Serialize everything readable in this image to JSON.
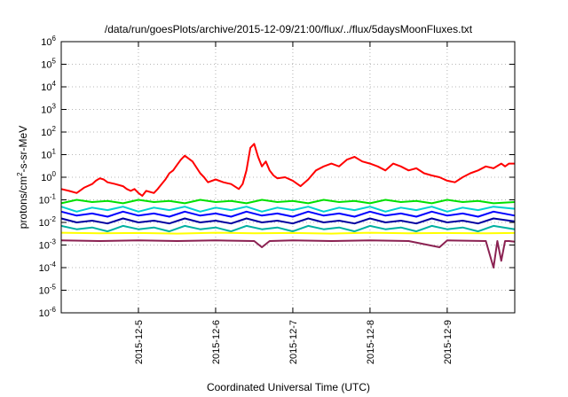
{
  "chart_data": {
    "type": "line",
    "title": "/data/run/goesPlots/archive/2015-12-09/21:00/flux/../flux/5daysMoonFluxes.txt",
    "xlabel": "Coordinated Universal Time (UTC)",
    "ylabel_parts": [
      "protons/cm",
      "2",
      "-s-sr-MeV"
    ],
    "yscale": "log",
    "ylim": [
      1e-06,
      1000000.0
    ],
    "xlim": [
      "2015-12-04 00:00",
      "2015-12-09 21:00"
    ],
    "grid": true,
    "legend": "none",
    "y_ticks": [
      {
        "value": 1e-06,
        "base": "10",
        "exp": "-6"
      },
      {
        "value": 1e-05,
        "base": "10",
        "exp": "-5"
      },
      {
        "value": 0.0001,
        "base": "10",
        "exp": "-4"
      },
      {
        "value": 0.001,
        "base": "10",
        "exp": "-3"
      },
      {
        "value": 0.01,
        "base": "10",
        "exp": "-2"
      },
      {
        "value": 0.1,
        "base": "10",
        "exp": "-1"
      },
      {
        "value": 1.0,
        "base": "10",
        "exp": "0"
      },
      {
        "value": 10.0,
        "base": "10",
        "exp": "1"
      },
      {
        "value": 100.0,
        "base": "10",
        "exp": "2"
      },
      {
        "value": 1000.0,
        "base": "10",
        "exp": "3"
      },
      {
        "value": 10000.0,
        "base": "10",
        "exp": "4"
      },
      {
        "value": 100000.0,
        "base": "10",
        "exp": "5"
      },
      {
        "value": 1000000.0,
        "base": "10",
        "exp": "6"
      }
    ],
    "x_ticks": [
      "2015-12-5",
      "2015-12-6",
      "2015-12-7",
      "2015-12-8",
      "2015-12-9"
    ],
    "x_tick_days": [
      1,
      2,
      3,
      4,
      5
    ],
    "x_end_days": 5.875,
    "series": [
      {
        "color": "#ff0000",
        "x": [
          0.0,
          0.1,
          0.2,
          0.3,
          0.4,
          0.45,
          0.5,
          0.55,
          0.6,
          0.7,
          0.8,
          0.85,
          0.9,
          0.95,
          1.0,
          1.05,
          1.1,
          1.2,
          1.25,
          1.3,
          1.35,
          1.4,
          1.45,
          1.5,
          1.55,
          1.6,
          1.7,
          1.8,
          1.85,
          1.9,
          2.0,
          2.1,
          2.2,
          2.3,
          2.35,
          2.4,
          2.45,
          2.5,
          2.55,
          2.6,
          2.65,
          2.7,
          2.75,
          2.8,
          2.9,
          3.0,
          3.1,
          3.2,
          3.3,
          3.4,
          3.5,
          3.6,
          3.7,
          3.8,
          3.9,
          4.0,
          4.1,
          4.2,
          4.3,
          4.4,
          4.5,
          4.6,
          4.7,
          4.8,
          4.9,
          5.0,
          5.1,
          5.2,
          5.3,
          5.4,
          5.5,
          5.6,
          5.7,
          5.75,
          5.8,
          5.875
        ],
        "y": [
          0.3,
          0.25,
          0.2,
          0.35,
          0.5,
          0.7,
          0.9,
          0.8,
          0.6,
          0.5,
          0.4,
          0.3,
          0.25,
          0.3,
          0.2,
          0.15,
          0.25,
          0.2,
          0.3,
          0.5,
          0.8,
          1.5,
          2.0,
          3.5,
          6.0,
          9.0,
          5.0,
          1.5,
          1.0,
          0.6,
          0.8,
          0.6,
          0.5,
          0.3,
          0.5,
          2.0,
          20.0,
          30.0,
          8.0,
          3.0,
          5.0,
          2.0,
          1.2,
          0.9,
          1.0,
          0.7,
          0.4,
          0.8,
          2.0,
          3.0,
          4.0,
          3.0,
          6.0,
          8.0,
          5.0,
          4.0,
          3.0,
          2.0,
          4.0,
          3.0,
          2.0,
          2.5,
          1.5,
          1.2,
          1.0,
          0.7,
          0.6,
          1.0,
          1.5,
          2.0,
          3.0,
          2.5,
          4.0,
          3.0,
          4.0,
          4.0
        ]
      },
      {
        "color": "#00e000",
        "x": [
          0.0,
          0.2,
          0.4,
          0.6,
          0.8,
          1.0,
          1.2,
          1.4,
          1.6,
          1.8,
          2.0,
          2.2,
          2.4,
          2.6,
          2.8,
          3.0,
          3.2,
          3.4,
          3.6,
          3.8,
          4.0,
          4.2,
          4.4,
          4.6,
          4.8,
          5.0,
          5.2,
          5.4,
          5.6,
          5.875
        ],
        "y": [
          0.07,
          0.1,
          0.08,
          0.09,
          0.07,
          0.1,
          0.08,
          0.09,
          0.07,
          0.1,
          0.08,
          0.09,
          0.07,
          0.1,
          0.08,
          0.09,
          0.07,
          0.1,
          0.08,
          0.09,
          0.07,
          0.1,
          0.08,
          0.09,
          0.07,
          0.1,
          0.08,
          0.09,
          0.07,
          0.08
        ]
      },
      {
        "color": "#00d0d0",
        "x": [
          0.0,
          0.2,
          0.4,
          0.6,
          0.8,
          1.0,
          1.2,
          1.4,
          1.6,
          1.8,
          2.0,
          2.2,
          2.4,
          2.6,
          2.8,
          3.0,
          3.2,
          3.4,
          3.6,
          3.8,
          4.0,
          4.2,
          4.4,
          4.6,
          4.8,
          5.0,
          5.2,
          5.4,
          5.6,
          5.875
        ],
        "y": [
          0.05,
          0.03,
          0.045,
          0.035,
          0.05,
          0.03,
          0.045,
          0.035,
          0.05,
          0.03,
          0.045,
          0.035,
          0.05,
          0.03,
          0.045,
          0.035,
          0.05,
          0.03,
          0.045,
          0.035,
          0.05,
          0.03,
          0.045,
          0.035,
          0.05,
          0.03,
          0.045,
          0.035,
          0.05,
          0.04
        ]
      },
      {
        "color": "#0000ff",
        "x": [
          0.0,
          0.2,
          0.4,
          0.6,
          0.8,
          1.0,
          1.2,
          1.4,
          1.6,
          1.8,
          2.0,
          2.2,
          2.4,
          2.6,
          2.8,
          3.0,
          3.2,
          3.4,
          3.6,
          3.8,
          4.0,
          4.2,
          4.4,
          4.6,
          4.8,
          5.0,
          5.2,
          5.4,
          5.6,
          5.875
        ],
        "y": [
          0.03,
          0.02,
          0.025,
          0.018,
          0.03,
          0.02,
          0.025,
          0.018,
          0.03,
          0.02,
          0.025,
          0.018,
          0.03,
          0.02,
          0.025,
          0.018,
          0.03,
          0.02,
          0.025,
          0.018,
          0.03,
          0.02,
          0.025,
          0.018,
          0.03,
          0.02,
          0.025,
          0.018,
          0.03,
          0.02
        ]
      },
      {
        "color": "#0000a0",
        "x": [
          0.0,
          0.2,
          0.4,
          0.6,
          0.8,
          1.0,
          1.2,
          1.4,
          1.6,
          1.8,
          2.0,
          2.2,
          2.4,
          2.6,
          2.8,
          3.0,
          3.2,
          3.4,
          3.6,
          3.8,
          4.0,
          4.2,
          4.4,
          4.6,
          4.8,
          5.0,
          5.2,
          5.4,
          5.6,
          5.875
        ],
        "y": [
          0.015,
          0.01,
          0.012,
          0.009,
          0.015,
          0.01,
          0.012,
          0.009,
          0.015,
          0.01,
          0.012,
          0.009,
          0.015,
          0.01,
          0.012,
          0.009,
          0.015,
          0.01,
          0.012,
          0.009,
          0.015,
          0.01,
          0.012,
          0.009,
          0.015,
          0.01,
          0.012,
          0.009,
          0.015,
          0.011
        ]
      },
      {
        "color": "#00b0a0",
        "x": [
          0.0,
          0.2,
          0.4,
          0.6,
          0.8,
          1.0,
          1.2,
          1.4,
          1.6,
          1.8,
          2.0,
          2.2,
          2.4,
          2.6,
          2.8,
          3.0,
          3.2,
          3.4,
          3.6,
          3.8,
          4.0,
          4.2,
          4.4,
          4.6,
          4.8,
          5.0,
          5.2,
          5.4,
          5.6,
          5.875
        ],
        "y": [
          0.007,
          0.005,
          0.006,
          0.004,
          0.007,
          0.005,
          0.006,
          0.004,
          0.007,
          0.005,
          0.006,
          0.004,
          0.007,
          0.005,
          0.006,
          0.004,
          0.007,
          0.005,
          0.006,
          0.004,
          0.007,
          0.005,
          0.006,
          0.004,
          0.007,
          0.005,
          0.006,
          0.004,
          0.007,
          0.005
        ]
      },
      {
        "color": "#ffff00",
        "x": [
          0.0,
          0.5,
          1.0,
          1.5,
          2.0,
          2.5,
          3.0,
          3.5,
          4.0,
          4.5,
          5.0,
          5.5,
          5.875
        ],
        "y": [
          0.0035,
          0.0033,
          0.0034,
          0.0032,
          0.0035,
          0.0033,
          0.0034,
          0.0032,
          0.0035,
          0.0033,
          0.0034,
          0.0033,
          0.0034
        ]
      },
      {
        "color": "#8b2252",
        "x": [
          0.0,
          0.5,
          1.0,
          1.5,
          2.0,
          2.5,
          2.6,
          2.7,
          3.0,
          3.5,
          4.0,
          4.5,
          4.9,
          5.0,
          5.5,
          5.6,
          5.65,
          5.7,
          5.75,
          5.8,
          5.875
        ],
        "y": [
          0.0016,
          0.0015,
          0.0016,
          0.0015,
          0.0016,
          0.0015,
          0.0008,
          0.0015,
          0.0016,
          0.0015,
          0.0016,
          0.0015,
          0.0008,
          0.0016,
          0.0015,
          0.0001,
          0.0015,
          0.0002,
          0.0015,
          0.0015,
          0.0014
        ]
      }
    ]
  }
}
